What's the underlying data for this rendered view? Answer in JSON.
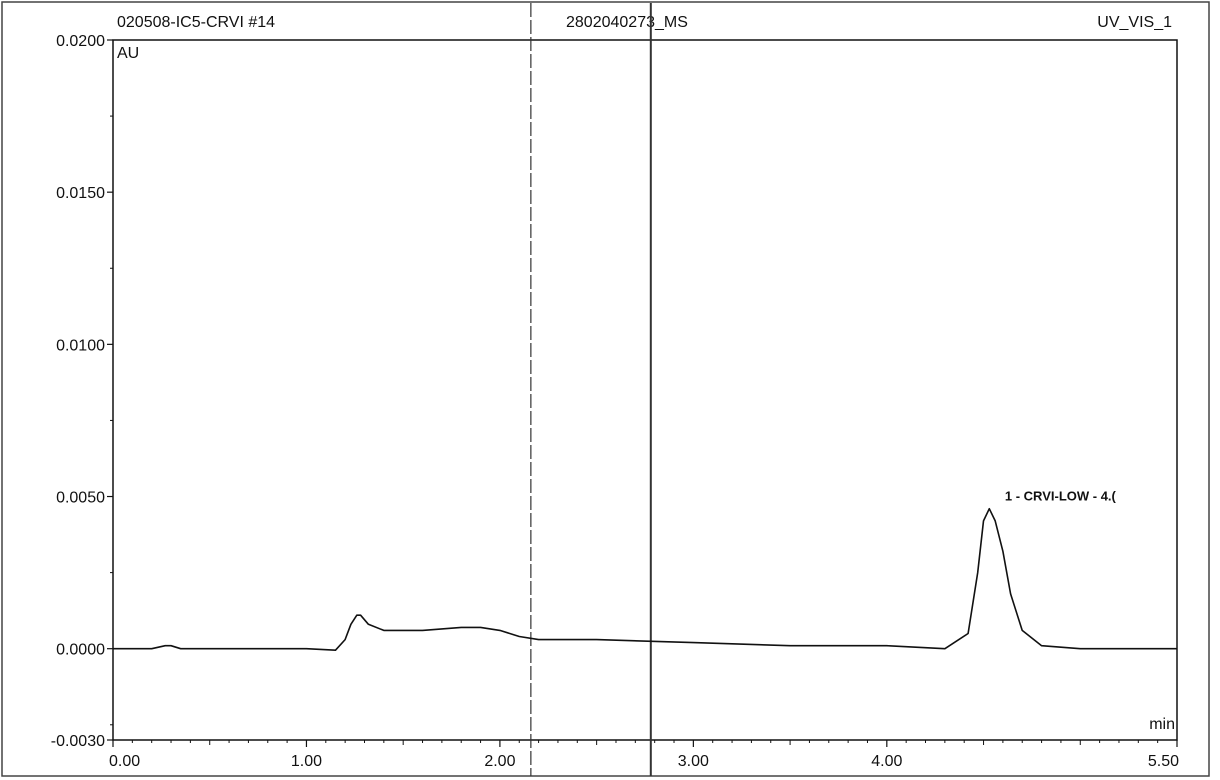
{
  "chart_data": {
    "type": "line",
    "title": "",
    "header": {
      "left": "020508-IC5-CRVI #14",
      "center": "2802040273_MS",
      "right": "UV_VIS_1"
    },
    "xlabel": "min",
    "ylabel": "AU",
    "xlim": [
      0.0,
      5.5
    ],
    "ylim": [
      -0.003,
      0.02
    ],
    "x_ticks": [
      0.0,
      1.0,
      2.0,
      3.0,
      4.0,
      5.5
    ],
    "x_tick_labels": [
      "0.00",
      "1.00",
      "2.00",
      "3.00",
      "4.00",
      "5.50"
    ],
    "y_ticks": [
      -0.003,
      0.0,
      0.005,
      0.01,
      0.015,
      0.02
    ],
    "y_tick_labels": [
      "-0.0030",
      "0.0000",
      "0.0050",
      "0.0100",
      "0.0150",
      "0.0200"
    ],
    "grid": false,
    "vertical_lines": [
      2.16,
      2.78
    ],
    "series": [
      {
        "x": [
          0.0,
          0.2,
          0.27,
          0.3,
          0.35,
          0.5,
          0.8,
          1.0,
          1.15,
          1.2,
          1.23,
          1.26,
          1.28,
          1.32,
          1.4,
          1.5,
          1.6,
          1.8,
          1.9,
          2.0,
          2.1,
          2.2,
          2.5,
          3.0,
          3.5,
          4.0,
          4.3,
          4.42,
          4.47,
          4.5,
          4.53,
          4.56,
          4.6,
          4.64,
          4.7,
          4.8,
          5.0,
          5.5
        ],
        "y": [
          0.0,
          0.0,
          0.0001,
          0.0001,
          0.0,
          0.0,
          0.0,
          0.0,
          -5e-05,
          0.0003,
          0.0008,
          0.0011,
          0.0011,
          0.0008,
          0.0006,
          0.0006,
          0.0006,
          0.0007,
          0.0007,
          0.0006,
          0.0004,
          0.0003,
          0.0003,
          0.0002,
          0.0001,
          0.0001,
          0.0,
          0.0005,
          0.0025,
          0.0042,
          0.0046,
          0.0042,
          0.0032,
          0.0018,
          0.0006,
          0.0001,
          0.0,
          0.0
        ]
      }
    ],
    "annotations": [
      {
        "text": "1 - CRVI-LOW - 4.(",
        "x": 4.6,
        "y": 0.005
      }
    ]
  }
}
